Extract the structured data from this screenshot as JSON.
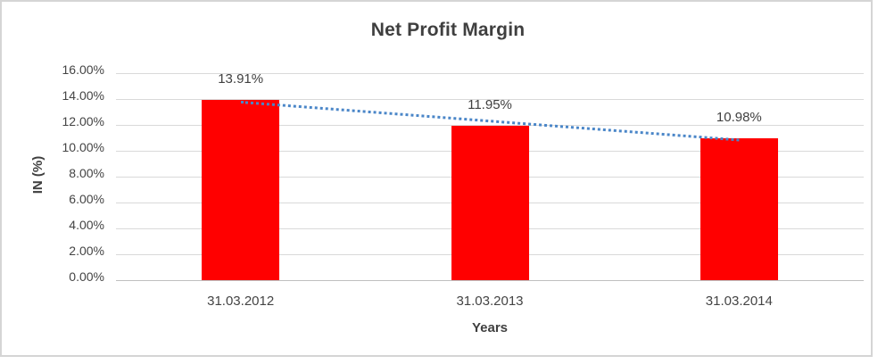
{
  "chart_data": {
    "type": "bar",
    "title": "Net Profit Margin",
    "categories": [
      "31.03.2012",
      "31.03.2013",
      "31.03.2014"
    ],
    "values": [
      13.91,
      11.95,
      10.98
    ],
    "data_labels": [
      "13.91%",
      "11.95%",
      "10.98%"
    ],
    "xlabel": "Years",
    "ylabel": "IN (%)",
    "ylim": [
      0,
      16
    ],
    "ytick_step": 2,
    "ytick_labels": [
      "0.00%",
      "2.00%",
      "4.00%",
      "6.00%",
      "8.00%",
      "10.00%",
      "12.00%",
      "14.00%",
      "16.00%"
    ],
    "grid": true,
    "legend": "none",
    "bar_color": "#FF0000",
    "trendline": {
      "type": "linear",
      "style": "dotted",
      "color": "#4A86C8"
    },
    "colors": {
      "gridline": "#D9D9D9",
      "axis_line": "#BFBFBF",
      "text": "#404040",
      "frame_border": "#D5D5D5",
      "background": "#FFFFFF"
    }
  }
}
